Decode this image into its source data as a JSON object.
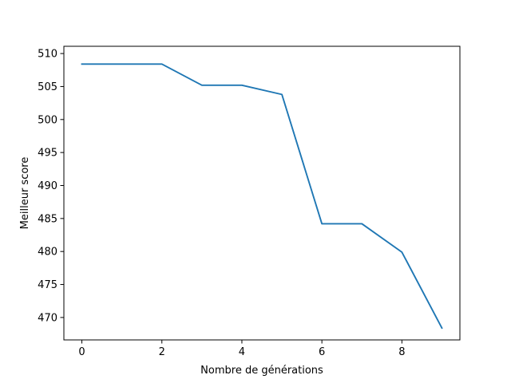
{
  "chart_data": {
    "type": "line",
    "xlabel": "Nombre de générations",
    "ylabel": "Meilleur score",
    "xlim": [
      -0.45,
      9.45
    ],
    "ylim": [
      466.6,
      511.1
    ],
    "xticks": [
      0,
      2,
      4,
      6,
      8
    ],
    "yticks": [
      470,
      475,
      480,
      485,
      490,
      495,
      500,
      505,
      510
    ],
    "grid": false,
    "legend": "none",
    "series": [
      {
        "color": "#1f77b4",
        "x": [
          0,
          1,
          2,
          3,
          4,
          5,
          6,
          7,
          8,
          9
        ],
        "y": [
          508.4,
          508.4,
          508.4,
          505.2,
          505.2,
          503.8,
          484.2,
          484.2,
          479.9,
          468.4
        ]
      }
    ]
  }
}
